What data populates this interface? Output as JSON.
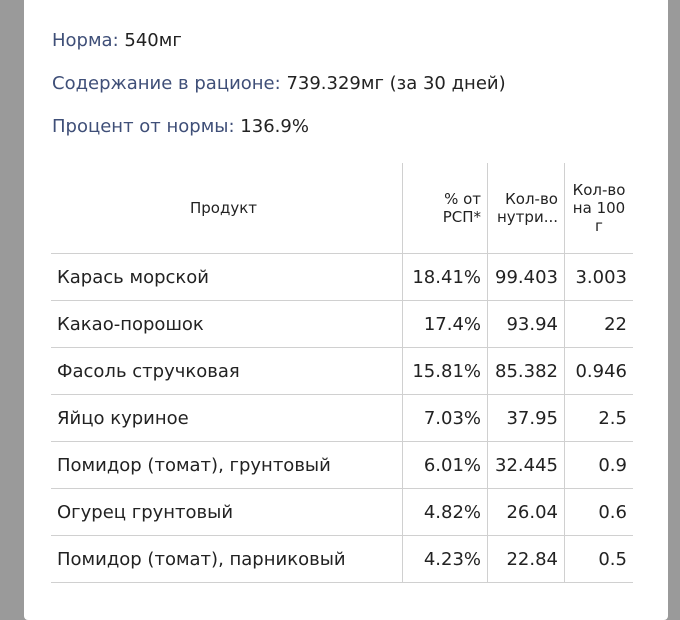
{
  "stats": {
    "norm_label": "Норма:",
    "norm_value": "540мг",
    "content_label": "Содержание в рационе:",
    "content_value": "739.329мг (за 30 дней)",
    "percent_label": "Процент от нормы:",
    "percent_value": "136.9%"
  },
  "table": {
    "headers": [
      "Продукт",
      "% от РСП*",
      "Кол-во нутри...",
      "Кол-во на 100 г"
    ],
    "rows": [
      [
        "Карась морской",
        "18.41%",
        "99.403",
        "3.003"
      ],
      [
        "Какао-порошок",
        "17.4%",
        "93.94",
        "22"
      ],
      [
        "Фасоль стручковая",
        "15.81%",
        "85.382",
        "0.946"
      ],
      [
        "Яйцо куриное",
        "7.03%",
        "37.95",
        "2.5"
      ],
      [
        "Помидор (томат), грунтовый",
        "6.01%",
        "32.445",
        "0.9"
      ],
      [
        "Огурец грунтовый",
        "4.82%",
        "26.04",
        "0.6"
      ],
      [
        "Помидор (томат), парниковый",
        "4.23%",
        "22.84",
        "0.5"
      ]
    ]
  }
}
